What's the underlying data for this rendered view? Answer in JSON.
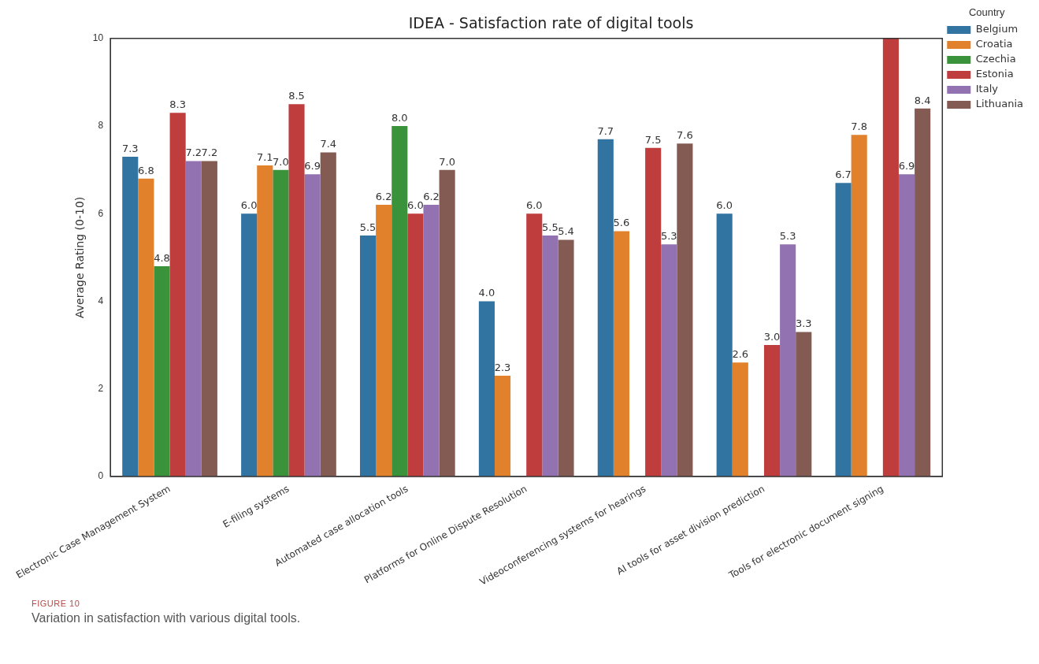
{
  "chart_data": {
    "type": "bar",
    "title": "IDEA - Satisfaction rate of digital tools",
    "ylabel": "Average Rating (0-10)",
    "legend_title": "Country",
    "legend": "right",
    "categories": [
      "Electronic Case Management System",
      "E-filing systems",
      "Automated case allocation tools",
      "Platforms for Online Dispute Resolution",
      "Videoconferencing systems for hearings",
      "AI tools for asset division prediction",
      "Tools for electronic document signing"
    ],
    "series": [
      {
        "name": "Belgium",
        "color": "#3274a1",
        "values": [
          7.3,
          6.0,
          5.5,
          4.0,
          7.7,
          6.0,
          6.7
        ],
        "value_labels": [
          "7.3",
          "6.0",
          "5.5",
          "4.0",
          "7.7",
          "6.0",
          "6.7"
        ]
      },
      {
        "name": "Croatia",
        "color": "#e1812c",
        "values": [
          6.8,
          7.1,
          6.2,
          2.3,
          5.6,
          2.6,
          7.8
        ],
        "value_labels": [
          "6.8",
          "7.1",
          "6.2",
          "2.3",
          "5.6",
          "2.6",
          "7.8"
        ]
      },
      {
        "name": "Czechia",
        "color": "#3a923a",
        "values": [
          4.8,
          7.0,
          8.0,
          null,
          null,
          null,
          null
        ],
        "value_labels": [
          "4.8",
          "7.0",
          "8.0",
          null,
          null,
          null,
          null
        ]
      },
      {
        "name": "Estonia",
        "color": "#c03d3e",
        "values": [
          8.3,
          8.5,
          6.0,
          6.0,
          7.5,
          3.0,
          10.0
        ],
        "value_labels": [
          "8.3",
          "8.5",
          "6.0",
          "6.0",
          "7.5",
          "3.0",
          null
        ]
      },
      {
        "name": "Italy",
        "color": "#9372b2",
        "values": [
          7.2,
          6.9,
          6.2,
          5.5,
          5.3,
          5.3,
          6.9
        ],
        "value_labels": [
          "7.2",
          "6.9",
          "6.2",
          "5.5",
          "5.3",
          "5.3",
          "6.9"
        ]
      },
      {
        "name": "Lithuania",
        "color": "#845b53",
        "values": [
          7.2,
          7.4,
          7.0,
          5.4,
          7.6,
          3.3,
          8.4
        ],
        "value_labels": [
          "7.2",
          "7.4",
          "7.0",
          "5.4",
          "7.6",
          "3.3",
          "8.4"
        ]
      }
    ],
    "ylim": [
      0,
      10
    ],
    "yticks": [
      0,
      2,
      4,
      6,
      8,
      10
    ],
    "grid": false,
    "annotations": [
      "FIGURE 10",
      "Variation in satisfaction with various digital tools."
    ]
  }
}
